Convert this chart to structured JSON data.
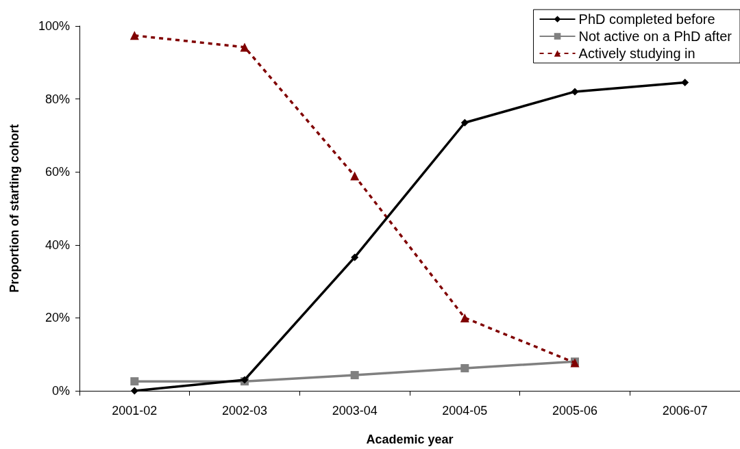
{
  "chart_data": {
    "type": "line",
    "xlabel": "Academic year",
    "ylabel": "Proportion of starting cohort",
    "categories": [
      "2001-02",
      "2002-03",
      "2003-04",
      "2004-05",
      "2005-06",
      "2006-07"
    ],
    "series": [
      {
        "name": "PhD completed before",
        "color": "#000000",
        "marker": "diamond",
        "line_style": "solid",
        "values": [
          0,
          3,
          36.6,
          73.5,
          82,
          84.5
        ]
      },
      {
        "name": "Not active on a PhD after",
        "color": "#808080",
        "marker": "square",
        "line_style": "solid",
        "values": [
          2.6,
          2.6,
          4.3,
          6.2,
          8.0,
          null
        ]
      },
      {
        "name": "Actively studying in",
        "color": "#800000",
        "marker": "triangle",
        "line_style": "dashed",
        "values": [
          97.4,
          94.2,
          58.9,
          20,
          7.7,
          null
        ]
      }
    ],
    "ylim": [
      0,
      100
    ],
    "yticks": [
      {
        "value": 0,
        "label": "0%"
      },
      {
        "value": 20,
        "label": "20%"
      },
      {
        "value": 40,
        "label": "40%"
      },
      {
        "value": 60,
        "label": "60%"
      },
      {
        "value": 80,
        "label": "80%"
      },
      {
        "value": 100,
        "label": "100%"
      }
    ],
    "grid": false,
    "legend": "top right"
  }
}
